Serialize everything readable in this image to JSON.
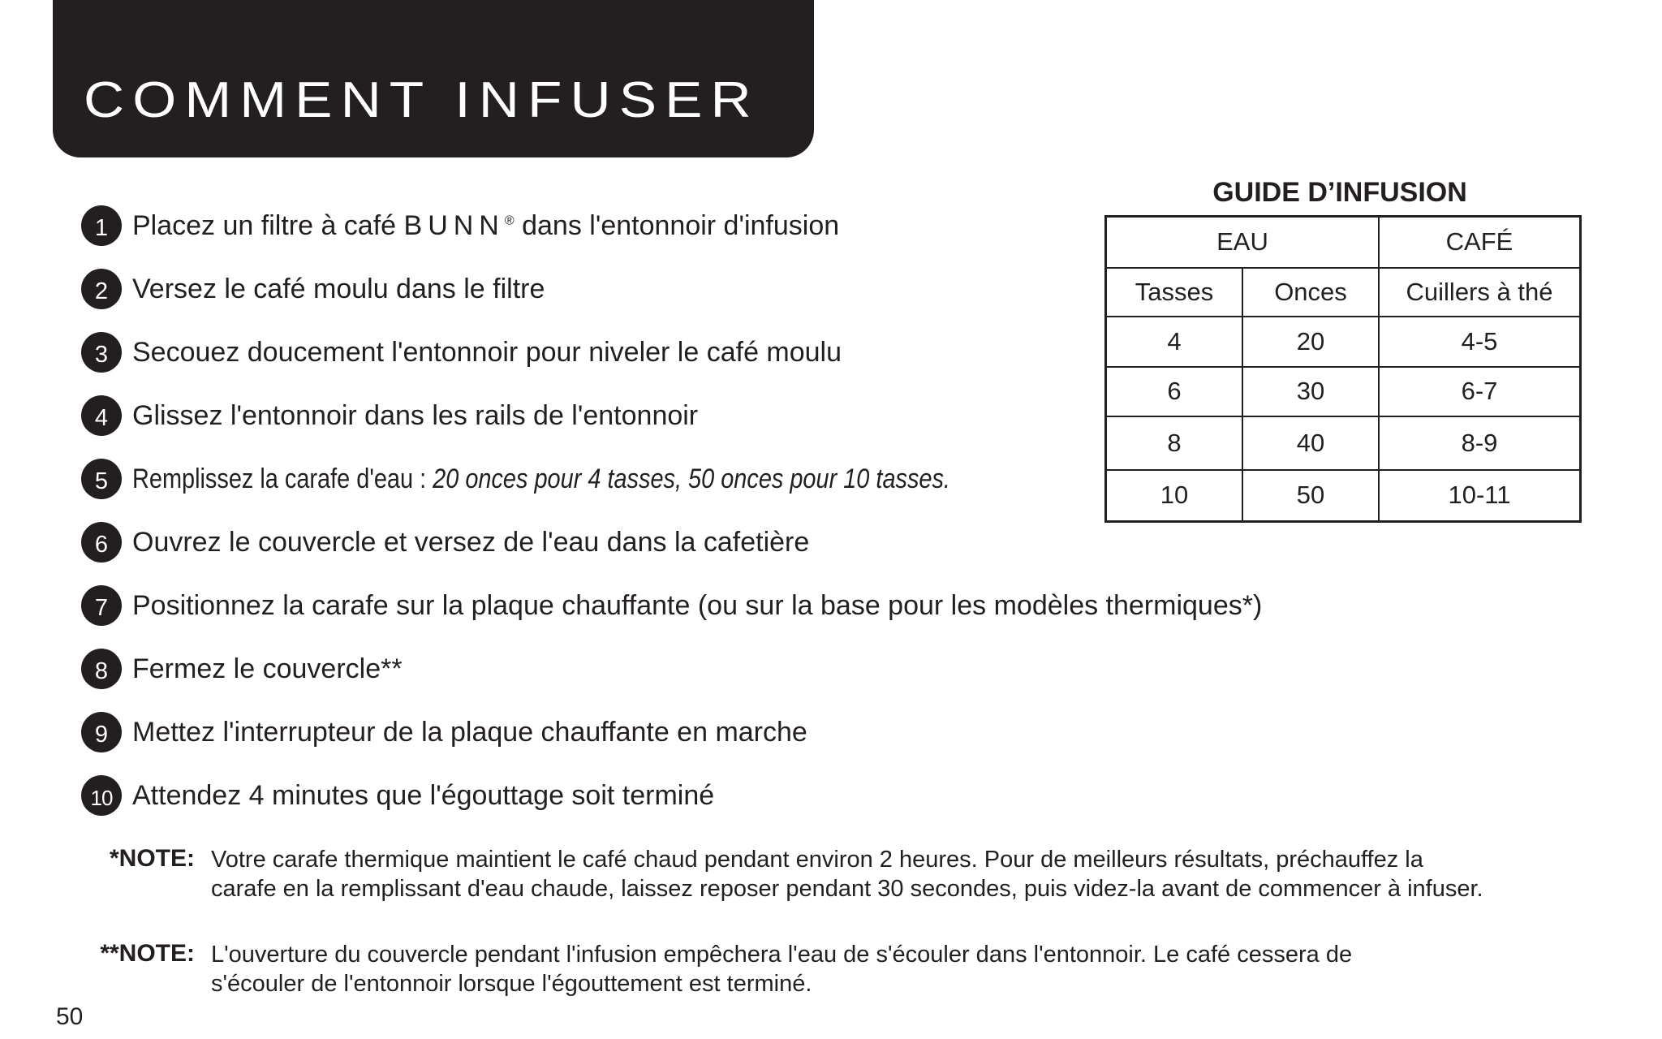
{
  "header": {
    "title": "COMMENT INFUSER"
  },
  "steps": [
    {
      "num": "1",
      "pre": "Placez un filtre à café ",
      "brand": "BUNN",
      "brand_mark": "®",
      "post": " dans l'entonnoir d'infusion"
    },
    {
      "num": "2",
      "text": "Versez le café moulu dans le filtre"
    },
    {
      "num": "3",
      "text": "Secouez doucement l'entonnoir pour niveler le café moulu"
    },
    {
      "num": "4",
      "text": "Glissez l'entonnoir dans les rails de l'entonnoir"
    },
    {
      "num": "5",
      "text": "Remplissez la carafe d'eau : ",
      "italic": "20 onces pour 4 tasses, 50 onces pour 10 tasses."
    },
    {
      "num": "6",
      "text": "Ouvrez le couvercle et versez de l'eau dans la cafetière"
    },
    {
      "num": "7",
      "text": "Positionnez la carafe sur la plaque chauffante (ou sur la base pour les modèles thermiques*)"
    },
    {
      "num": "8",
      "text": "Fermez le couvercle**"
    },
    {
      "num": "9",
      "text": "Mettez l'interrupteur de la plaque chauffante en marche"
    },
    {
      "num": "10",
      "text": "Attendez 4 minutes que l'égouttage soit terminé"
    }
  ],
  "guide": {
    "title": "GUIDE D’INFUSION",
    "group_headers": [
      "EAU",
      "CAFÉ"
    ],
    "columns": [
      "Tasses",
      "Onces",
      "Cuillers à thé"
    ],
    "rows": [
      [
        "4",
        "20",
        "4-5"
      ],
      [
        "6",
        "30",
        "6-7"
      ],
      [
        "8",
        "40",
        "8-9"
      ],
      [
        "10",
        "50",
        "10-11"
      ]
    ]
  },
  "notes": [
    {
      "label": "*NOTE:",
      "lines": [
        "Votre carafe thermique maintient le café chaud pendant environ 2 heures. Pour de meilleurs résultats, préchauffez la",
        "carafe en la remplissant d'eau chaude, laissez reposer pendant 30 secondes, puis videz-la avant de commencer à infuser."
      ]
    },
    {
      "label": "**NOTE:",
      "lines": [
        "L'ouverture du couvercle pendant l'infusion empêchera l'eau de s'écouler dans l'entonnoir. Le café cessera de",
        "s'écouler de l'entonnoir lorsque l'égouttement est terminé."
      ]
    }
  ],
  "page_number": "50"
}
